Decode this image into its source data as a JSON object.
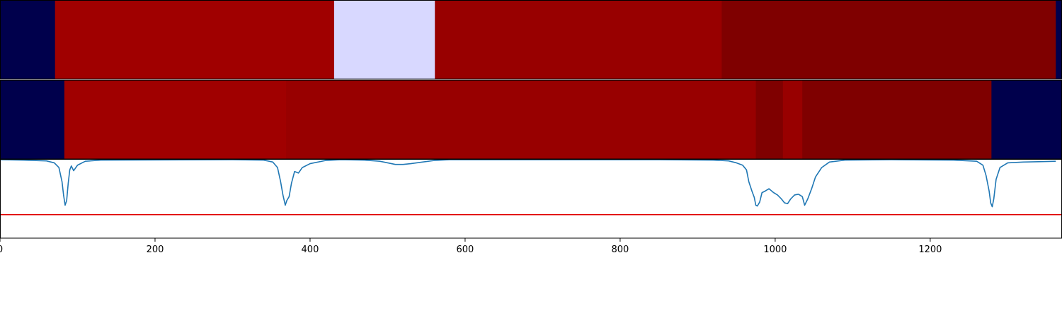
{
  "chart_data": {
    "type": "heatmap",
    "x_range": [
      0,
      1370
    ],
    "x_ticks": [
      0,
      200,
      400,
      600,
      800,
      1000,
      1200
    ],
    "x_tick_labels": [
      "0",
      "200",
      "400",
      "600",
      "800",
      "1000",
      "1200"
    ],
    "panels": [
      {
        "kind": "segments",
        "segments": [
          {
            "start": 0,
            "end": 71,
            "color": "#00004c"
          },
          {
            "start": 71,
            "end": 431,
            "color": "#a00000"
          },
          {
            "start": 431,
            "end": 561,
            "color": "#d8d8ff"
          },
          {
            "start": 561,
            "end": 931,
            "color": "#980000"
          },
          {
            "start": 931,
            "end": 1362,
            "color": "#7f0000"
          },
          {
            "start": 1362,
            "end": 1370,
            "color": "#00004c"
          }
        ]
      },
      {
        "kind": "segments",
        "segments": [
          {
            "start": 0,
            "end": 83,
            "color": "#00004c"
          },
          {
            "start": 83,
            "end": 369,
            "color": "#a00000"
          },
          {
            "start": 369,
            "end": 975,
            "color": "#980000"
          },
          {
            "start": 975,
            "end": 1010,
            "color": "#7f0000"
          },
          {
            "start": 1010,
            "end": 1035,
            "color": "#980000"
          },
          {
            "start": 1035,
            "end": 1279,
            "color": "#7f0000"
          },
          {
            "start": 1279,
            "end": 1370,
            "color": "#00004c"
          }
        ]
      },
      {
        "kind": "line",
        "y_range": [
          0,
          1
        ],
        "threshold": 0.3,
        "threshold_color": "#e00000",
        "line_color": "#1f77b4",
        "x": [
          0,
          30,
          60,
          70,
          76,
          80,
          82,
          84,
          86,
          88,
          90,
          92,
          95,
          100,
          110,
          130,
          300,
          340,
          352,
          358,
          362,
          365,
          368,
          370,
          373,
          376,
          380,
          385,
          390,
          400,
          420,
          440,
          470,
          490,
          500,
          510,
          520,
          530,
          545,
          560,
          580,
          620,
          700,
          850,
          920,
          940,
          950,
          958,
          963,
          966,
          970,
          973,
          975,
          977,
          980,
          983,
          987,
          992,
          998,
          1003,
          1008,
          1012,
          1016,
          1020,
          1025,
          1030,
          1035,
          1038,
          1042,
          1047,
          1052,
          1060,
          1070,
          1090,
          1150,
          1230,
          1260,
          1268,
          1272,
          1276,
          1278,
          1280,
          1282,
          1285,
          1290,
          1300,
          1320,
          1340,
          1362
        ],
        "y": [
          1,
          0.995,
          0.985,
          0.96,
          0.9,
          0.72,
          0.55,
          0.42,
          0.48,
          0.7,
          0.87,
          0.92,
          0.86,
          0.93,
          0.98,
          0.995,
          1,
          0.995,
          0.97,
          0.9,
          0.72,
          0.55,
          0.42,
          0.48,
          0.53,
          0.7,
          0.85,
          0.83,
          0.9,
          0.95,
          0.99,
          1,
          0.995,
          0.98,
          0.96,
          0.94,
          0.94,
          0.95,
          0.97,
          0.99,
          1,
          1,
          1,
          1,
          0.995,
          0.985,
          0.96,
          0.93,
          0.87,
          0.72,
          0.6,
          0.52,
          0.42,
          0.41,
          0.46,
          0.58,
          0.6,
          0.63,
          0.58,
          0.55,
          0.5,
          0.45,
          0.44,
          0.5,
          0.55,
          0.56,
          0.53,
          0.42,
          0.5,
          0.63,
          0.78,
          0.9,
          0.97,
          0.995,
          1,
          0.995,
          0.98,
          0.93,
          0.8,
          0.6,
          0.45,
          0.4,
          0.5,
          0.75,
          0.9,
          0.96,
          0.97,
          0.975,
          0.98
        ]
      }
    ]
  }
}
